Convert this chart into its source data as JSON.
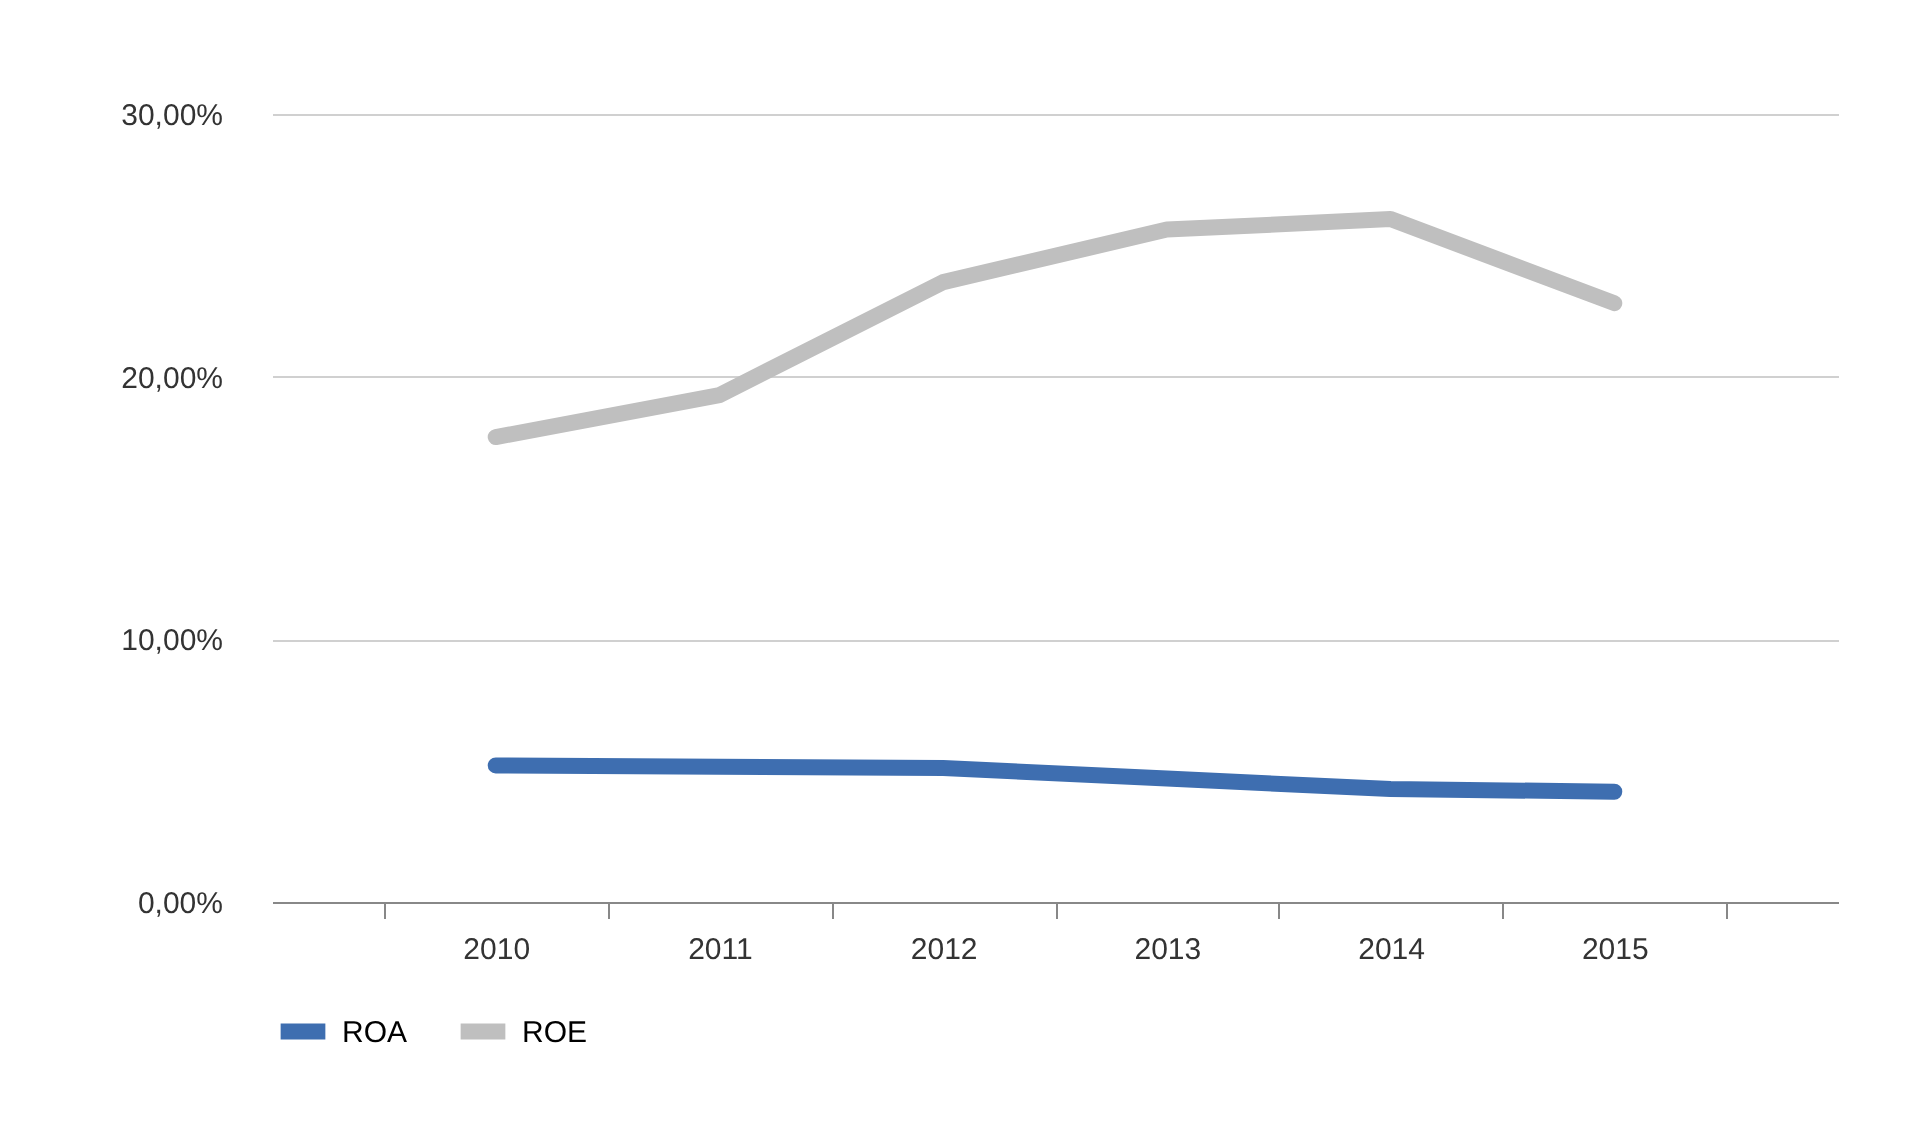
{
  "chart_data": {
    "type": "line",
    "categories": [
      "2010",
      "2011",
      "2012",
      "2013",
      "2014",
      "2015"
    ],
    "series": [
      {
        "name": "ROA",
        "color": "#3e6eb0",
        "values": [
          5.2,
          5.15,
          5.1,
          4.7,
          4.3,
          4.2
        ]
      },
      {
        "name": "ROE",
        "color": "#bfbfbf",
        "values": [
          17.7,
          19.3,
          23.6,
          25.6,
          26.0,
          22.8
        ]
      }
    ],
    "ylim": [
      0,
      30
    ],
    "yticks": [
      {
        "value": 0,
        "label": "0,00%"
      },
      {
        "value": 10,
        "label": "10,00%"
      },
      {
        "value": 20,
        "label": "20,00%"
      },
      {
        "value": 30,
        "label": "30,00%"
      }
    ],
    "grid": "y",
    "legend": "bottom",
    "marker": "none",
    "line_style": "solid"
  }
}
